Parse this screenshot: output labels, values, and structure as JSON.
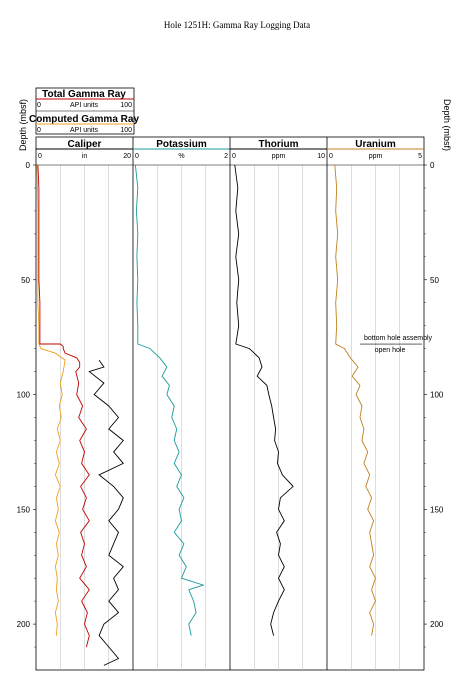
{
  "chart_data": {
    "type": "line",
    "title": "Hole 1251H: Gamma Ray Logging Data",
    "ylabel": "Depth (mbsf)",
    "ylim": [
      0,
      220
    ],
    "yticks": [
      0,
      50,
      100,
      150,
      200
    ],
    "y_inverted": true,
    "grid": false,
    "legend": [
      {
        "name": "Total Gamma Ray",
        "unit": "API units",
        "min": "0",
        "max": "100",
        "color": "#c00000"
      },
      {
        "name": "Computed Gamma Ray",
        "unit": "API units",
        "min": "0",
        "max": "100",
        "color": "#f0a020"
      }
    ],
    "tracks": [
      {
        "name": "Caliper",
        "unit": "in",
        "min": "0",
        "max": "20",
        "color": "#000000",
        "xlim": [
          0,
          20
        ]
      },
      {
        "name": "Potassium",
        "unit": "%",
        "min": "0",
        "max": "2",
        "color": "#1a9a9a",
        "xlim": [
          0,
          2
        ]
      },
      {
        "name": "Thorium",
        "unit": "ppm",
        "min": "0",
        "max": "10",
        "color": "#000000",
        "xlim": [
          0,
          10
        ]
      },
      {
        "name": "Uranium",
        "unit": "ppm",
        "min": "0",
        "max": "5",
        "color": "#c08020",
        "xlim": [
          0,
          5
        ]
      }
    ],
    "annotations": {
      "upper": "bottom hole assembly",
      "lower": "open hole",
      "depth": 78
    },
    "series": [
      {
        "name": "Total Gamma Ray",
        "track": 0,
        "color": "#c00000",
        "points": [
          [
            0,
            2
          ],
          [
            10,
            3
          ],
          [
            20,
            3
          ],
          [
            30,
            3
          ],
          [
            40,
            3
          ],
          [
            50,
            3
          ],
          [
            60,
            4
          ],
          [
            70,
            4
          ],
          [
            78,
            4
          ],
          [
            78,
            25
          ],
          [
            79,
            28
          ],
          [
            80,
            28
          ],
          [
            82,
            30
          ],
          [
            84,
            42
          ],
          [
            86,
            45
          ],
          [
            88,
            45
          ],
          [
            90,
            41
          ],
          [
            95,
            44
          ],
          [
            100,
            42
          ],
          [
            105,
            48
          ],
          [
            110,
            44
          ],
          [
            115,
            52
          ],
          [
            120,
            45
          ],
          [
            125,
            50
          ],
          [
            130,
            47
          ],
          [
            135,
            55
          ],
          [
            140,
            46
          ],
          [
            145,
            52
          ],
          [
            150,
            48
          ],
          [
            155,
            55
          ],
          [
            160,
            46
          ],
          [
            165,
            50
          ],
          [
            170,
            47
          ],
          [
            175,
            52
          ],
          [
            180,
            45
          ],
          [
            185,
            55
          ],
          [
            190,
            47
          ],
          [
            195,
            53
          ],
          [
            200,
            50
          ],
          [
            205,
            55
          ],
          [
            210,
            52
          ]
        ]
      },
      {
        "name": "Computed Gamma Ray",
        "track": 0,
        "color": "#f0a020",
        "points": [
          [
            0,
            1
          ],
          [
            20,
            2
          ],
          [
            40,
            2
          ],
          [
            60,
            2
          ],
          [
            70,
            3
          ],
          [
            78,
            3
          ],
          [
            80,
            5
          ],
          [
            82,
            20
          ],
          [
            85,
            30
          ],
          [
            90,
            28
          ],
          [
            95,
            25
          ],
          [
            100,
            27
          ],
          [
            105,
            24
          ],
          [
            110,
            26
          ],
          [
            115,
            22
          ],
          [
            120,
            25
          ],
          [
            125,
            21
          ],
          [
            130,
            24
          ],
          [
            135,
            20
          ],
          [
            140,
            25
          ],
          [
            145,
            21
          ],
          [
            150,
            23
          ],
          [
            155,
            20
          ],
          [
            160,
            24
          ],
          [
            165,
            21
          ],
          [
            170,
            23
          ],
          [
            175,
            20
          ],
          [
            180,
            22
          ],
          [
            185,
            21
          ],
          [
            190,
            23
          ],
          [
            195,
            20
          ],
          [
            200,
            22
          ],
          [
            205,
            21
          ]
        ]
      },
      {
        "name": "Caliper",
        "track": 0,
        "color": "#000000",
        "points": [
          [
            85,
            13
          ],
          [
            88,
            14
          ],
          [
            90,
            11
          ],
          [
            95,
            14
          ],
          [
            100,
            12
          ],
          [
            105,
            15
          ],
          [
            110,
            17
          ],
          [
            115,
            15
          ],
          [
            120,
            18
          ],
          [
            125,
            16
          ],
          [
            130,
            18
          ],
          [
            135,
            13
          ],
          [
            140,
            16
          ],
          [
            145,
            18
          ],
          [
            150,
            17
          ],
          [
            155,
            15
          ],
          [
            160,
            17
          ],
          [
            165,
            16
          ],
          [
            170,
            15
          ],
          [
            175,
            18
          ],
          [
            180,
            16
          ],
          [
            185,
            17
          ],
          [
            190,
            15
          ],
          [
            195,
            17
          ],
          [
            200,
            14
          ],
          [
            205,
            13
          ],
          [
            210,
            15
          ],
          [
            215,
            17
          ],
          [
            218,
            14
          ]
        ]
      },
      {
        "name": "Potassium",
        "track": 1,
        "color": "#1a9a9a",
        "points": [
          [
            0,
            0.05
          ],
          [
            10,
            0.1
          ],
          [
            20,
            0.07
          ],
          [
            30,
            0.1
          ],
          [
            40,
            0.08
          ],
          [
            50,
            0.1
          ],
          [
            60,
            0.08
          ],
          [
            70,
            0.1
          ],
          [
            78,
            0.1
          ],
          [
            80,
            0.35
          ],
          [
            84,
            0.55
          ],
          [
            88,
            0.7
          ],
          [
            92,
            0.6
          ],
          [
            96,
            0.75
          ],
          [
            100,
            0.7
          ],
          [
            105,
            0.85
          ],
          [
            110,
            0.8
          ],
          [
            115,
            0.9
          ],
          [
            120,
            0.85
          ],
          [
            125,
            0.95
          ],
          [
            130,
            0.85
          ],
          [
            135,
            1.0
          ],
          [
            140,
            0.9
          ],
          [
            145,
            1.05
          ],
          [
            150,
            0.95
          ],
          [
            155,
            1.0
          ],
          [
            160,
            0.85
          ],
          [
            165,
            1.05
          ],
          [
            170,
            0.95
          ],
          [
            175,
            1.1
          ],
          [
            180,
            1.0
          ],
          [
            183,
            1.45
          ],
          [
            185,
            1.15
          ],
          [
            190,
            1.25
          ],
          [
            195,
            1.3
          ],
          [
            200,
            1.15
          ],
          [
            205,
            1.2
          ]
        ]
      },
      {
        "name": "Thorium",
        "track": 2,
        "color": "#000000",
        "points": [
          [
            0,
            0.5
          ],
          [
            10,
            0.8
          ],
          [
            20,
            0.6
          ],
          [
            30,
            0.9
          ],
          [
            40,
            0.6
          ],
          [
            50,
            0.9
          ],
          [
            60,
            0.7
          ],
          [
            70,
            0.9
          ],
          [
            78,
            0.6
          ],
          [
            80,
            2.0
          ],
          [
            84,
            3.0
          ],
          [
            88,
            3.3
          ],
          [
            92,
            2.8
          ],
          [
            96,
            3.8
          ],
          [
            100,
            4.0
          ],
          [
            105,
            4.3
          ],
          [
            110,
            4.5
          ],
          [
            115,
            4.7
          ],
          [
            120,
            4.6
          ],
          [
            125,
            5.0
          ],
          [
            130,
            4.9
          ],
          [
            135,
            5.4
          ],
          [
            140,
            6.5
          ],
          [
            145,
            5.2
          ],
          [
            150,
            5.0
          ],
          [
            155,
            5.6
          ],
          [
            160,
            4.8
          ],
          [
            165,
            5.2
          ],
          [
            170,
            5.0
          ],
          [
            175,
            5.6
          ],
          [
            180,
            5.0
          ],
          [
            185,
            5.6
          ],
          [
            190,
            5.0
          ],
          [
            195,
            4.5
          ],
          [
            200,
            4.2
          ],
          [
            205,
            4.5
          ]
        ]
      },
      {
        "name": "Uranium",
        "track": 3,
        "color": "#c08020",
        "points": [
          [
            0,
            0.4
          ],
          [
            10,
            0.5
          ],
          [
            20,
            0.45
          ],
          [
            30,
            0.55
          ],
          [
            40,
            0.45
          ],
          [
            50,
            0.55
          ],
          [
            60,
            0.45
          ],
          [
            70,
            0.5
          ],
          [
            78,
            0.45
          ],
          [
            80,
            0.9
          ],
          [
            84,
            1.2
          ],
          [
            88,
            1.6
          ],
          [
            92,
            1.3
          ],
          [
            96,
            1.7
          ],
          [
            100,
            1.5
          ],
          [
            105,
            1.8
          ],
          [
            110,
            1.7
          ],
          [
            115,
            1.9
          ],
          [
            120,
            1.8
          ],
          [
            125,
            2.1
          ],
          [
            130,
            1.9
          ],
          [
            135,
            2.2
          ],
          [
            140,
            2.0
          ],
          [
            145,
            2.3
          ],
          [
            150,
            2.1
          ],
          [
            155,
            2.4
          ],
          [
            160,
            2.2
          ],
          [
            165,
            2.3
          ],
          [
            170,
            2.4
          ],
          [
            175,
            2.2
          ],
          [
            180,
            2.5
          ],
          [
            185,
            2.3
          ],
          [
            190,
            2.5
          ],
          [
            195,
            2.2
          ],
          [
            200,
            2.4
          ],
          [
            205,
            2.3
          ]
        ]
      }
    ]
  }
}
